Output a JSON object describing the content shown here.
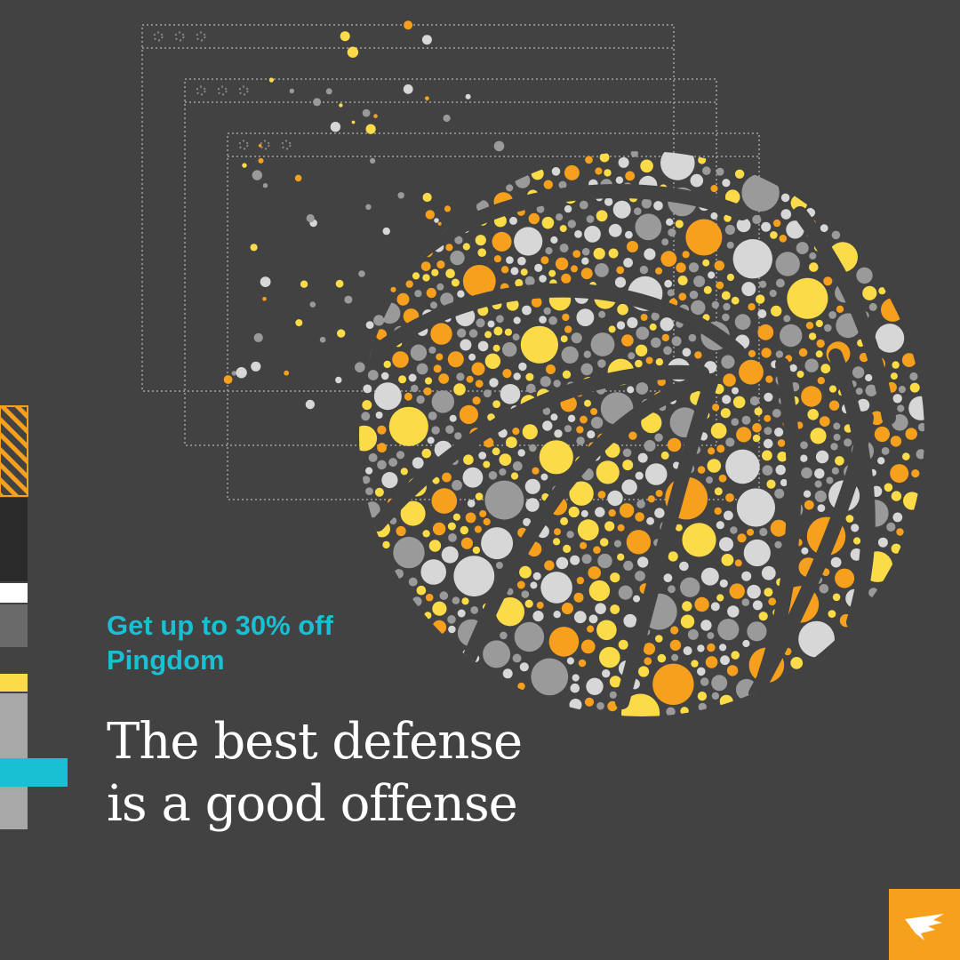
{
  "promo": {
    "line1": "Get up to 30% off",
    "line2": "Pingdom"
  },
  "headline": {
    "line1": "The best defense",
    "line2": "is a good offense"
  },
  "brand": {
    "logo": "solarwinds-bird-icon",
    "accent": "#f7a01d"
  },
  "colors": {
    "background": "#424242",
    "promo_text": "#19bfd3",
    "headline_text": "#ffffff",
    "dot_orange": "#f7a01d",
    "dot_yellow": "#fbdc48",
    "dot_gray": "#9a9a9a",
    "dot_light": "#d7d7d7"
  },
  "illustration": {
    "subject": "basketball-of-dots-icon",
    "backdrop": "browser-window-outlines"
  },
  "side_bars": [
    "#f7a01d",
    "#2a2a2a",
    "#ffffff",
    "#6a6a6a",
    "#fbdc48",
    "#a8a8a8",
    "#19bfd3"
  ]
}
